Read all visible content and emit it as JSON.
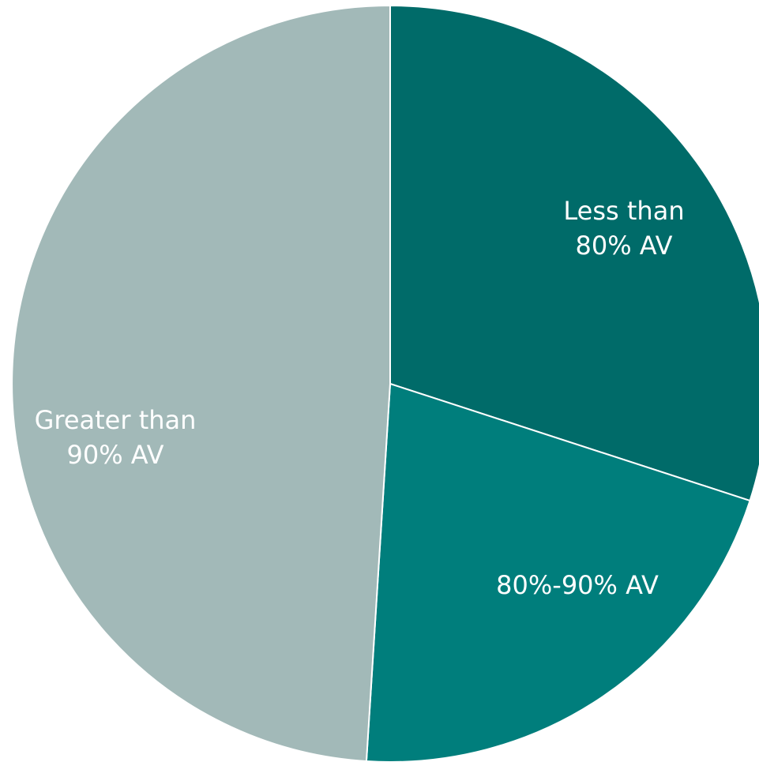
{
  "chart_data": {
    "type": "pie",
    "start_angle_deg": 0,
    "direction": "clockwise",
    "slices": [
      {
        "label_lines": [
          "Less than",
          "80% AV"
        ],
        "value": 30,
        "color": "#006b69"
      },
      {
        "label_lines": [
          "80%-90% AV"
        ],
        "value": 21,
        "color": "#007e7c"
      },
      {
        "label_lines": [
          "Greater than",
          "90% AV"
        ],
        "value": 49,
        "color": "#a2b9b8"
      }
    ],
    "legend": "none",
    "slice_border_color": "#ffffff"
  }
}
